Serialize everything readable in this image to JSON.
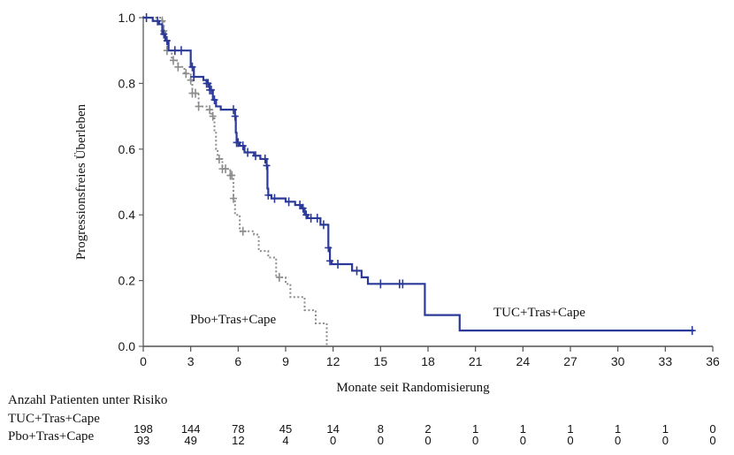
{
  "chart_data": {
    "type": "line",
    "subtype": "kaplan-meier",
    "title": "",
    "xlabel": "Monate seit Randomisierung",
    "ylabel": "Progressionsfreies Überleben",
    "xlim": [
      0,
      36
    ],
    "ylim": [
      0.0,
      1.0
    ],
    "x_ticks": [
      0,
      3,
      6,
      9,
      12,
      15,
      18,
      21,
      24,
      27,
      30,
      33,
      36
    ],
    "x_tick_labels": [
      "0",
      "3",
      "6",
      "9",
      "12",
      "15",
      "18",
      "21",
      "24",
      "27",
      "30",
      "33",
      "36"
    ],
    "y_ticks": [
      0.0,
      0.2,
      0.4,
      0.6,
      0.8,
      1.0
    ],
    "y_tick_labels": [
      "0.0",
      "0.2",
      "0.4",
      "0.6",
      "0.8",
      "1.0"
    ],
    "grid": false,
    "series": [
      {
        "name": "TUC+Tras+Cape",
        "label": "TUC+Tras+Cape",
        "color": "#2b3a99",
        "style": "solid",
        "steps": [
          [
            0,
            1.0
          ],
          [
            0.6,
            0.99
          ],
          [
            1.0,
            0.98
          ],
          [
            1.2,
            0.95
          ],
          [
            1.4,
            0.93
          ],
          [
            1.6,
            0.9
          ],
          [
            3.0,
            0.85
          ],
          [
            3.2,
            0.82
          ],
          [
            3.8,
            0.81
          ],
          [
            4.0,
            0.8
          ],
          [
            4.2,
            0.78
          ],
          [
            4.4,
            0.75
          ],
          [
            4.6,
            0.73
          ],
          [
            4.9,
            0.72
          ],
          [
            5.8,
            0.7
          ],
          [
            5.85,
            0.65
          ],
          [
            5.9,
            0.62
          ],
          [
            6.1,
            0.61
          ],
          [
            6.4,
            0.59
          ],
          [
            7.0,
            0.58
          ],
          [
            7.4,
            0.57
          ],
          [
            7.8,
            0.55
          ],
          [
            7.85,
            0.48
          ],
          [
            7.9,
            0.46
          ],
          [
            8.1,
            0.45
          ],
          [
            9.0,
            0.44
          ],
          [
            9.6,
            0.43
          ],
          [
            10.0,
            0.42
          ],
          [
            10.2,
            0.4
          ],
          [
            10.4,
            0.39
          ],
          [
            11.2,
            0.37
          ],
          [
            11.6,
            0.37
          ],
          [
            11.7,
            0.3
          ],
          [
            11.8,
            0.26
          ],
          [
            11.9,
            0.25
          ],
          [
            13.2,
            0.23
          ],
          [
            13.8,
            0.21
          ],
          [
            14.2,
            0.19
          ],
          [
            17.8,
            0.095
          ],
          [
            20.0,
            0.048
          ],
          [
            34.8,
            0.048
          ]
        ],
        "censor_times": [
          0.2,
          0.9,
          1.3,
          1.5,
          2.0,
          2.4,
          3.1,
          3.2,
          4.0,
          4.1,
          4.2,
          4.3,
          4.5,
          5.7,
          5.8,
          5.9,
          6.0,
          6.3,
          6.6,
          7.1,
          7.7,
          7.8,
          7.9,
          8.3,
          9.2,
          9.9,
          10.1,
          10.3,
          10.6,
          11.0,
          11.4,
          11.7,
          11.8,
          12.3,
          13.5,
          15.0,
          16.2,
          16.4,
          34.7
        ],
        "at_risk": [
          198,
          144,
          78,
          45,
          14,
          8,
          2,
          1,
          1,
          1,
          1,
          1,
          0
        ]
      },
      {
        "name": "Pbo+Tras+Cape",
        "label": "Pbo+Tras+Cape",
        "color": "#8c8c8c",
        "style": "dotted",
        "steps": [
          [
            0,
            1.0
          ],
          [
            1.2,
            0.99
          ],
          [
            1.3,
            0.96
          ],
          [
            1.4,
            0.93
          ],
          [
            1.5,
            0.9
          ],
          [
            1.8,
            0.87
          ],
          [
            2.2,
            0.85
          ],
          [
            2.6,
            0.83
          ],
          [
            3.0,
            0.81
          ],
          [
            3.1,
            0.77
          ],
          [
            3.5,
            0.73
          ],
          [
            4.0,
            0.72
          ],
          [
            4.3,
            0.7
          ],
          [
            4.5,
            0.65
          ],
          [
            4.6,
            0.6
          ],
          [
            4.7,
            0.57
          ],
          [
            5.0,
            0.54
          ],
          [
            5.5,
            0.52
          ],
          [
            5.7,
            0.45
          ],
          [
            5.8,
            0.4
          ],
          [
            6.1,
            0.35
          ],
          [
            7.0,
            0.34
          ],
          [
            7.3,
            0.29
          ],
          [
            7.9,
            0.27
          ],
          [
            8.4,
            0.21
          ],
          [
            9.0,
            0.19
          ],
          [
            9.3,
            0.15
          ],
          [
            10.2,
            0.11
          ],
          [
            10.9,
            0.07
          ],
          [
            11.6,
            0.0
          ]
        ],
        "censor_times": [
          1.2,
          1.3,
          1.5,
          1.9,
          2.2,
          2.7,
          3.0,
          3.1,
          3.3,
          3.5,
          4.2,
          4.4,
          4.8,
          5.0,
          5.2,
          5.5,
          5.6,
          5.7,
          6.3,
          8.6
        ],
        "at_risk": [
          93,
          49,
          12,
          4,
          0,
          0,
          0,
          0,
          0,
          0,
          0,
          0,
          0
        ]
      }
    ],
    "risk_table": {
      "title": "Anzahl Patienten unter Risiko",
      "rows": [
        "TUC+Tras+Cape",
        "Pbo+Tras+Cape"
      ]
    }
  }
}
